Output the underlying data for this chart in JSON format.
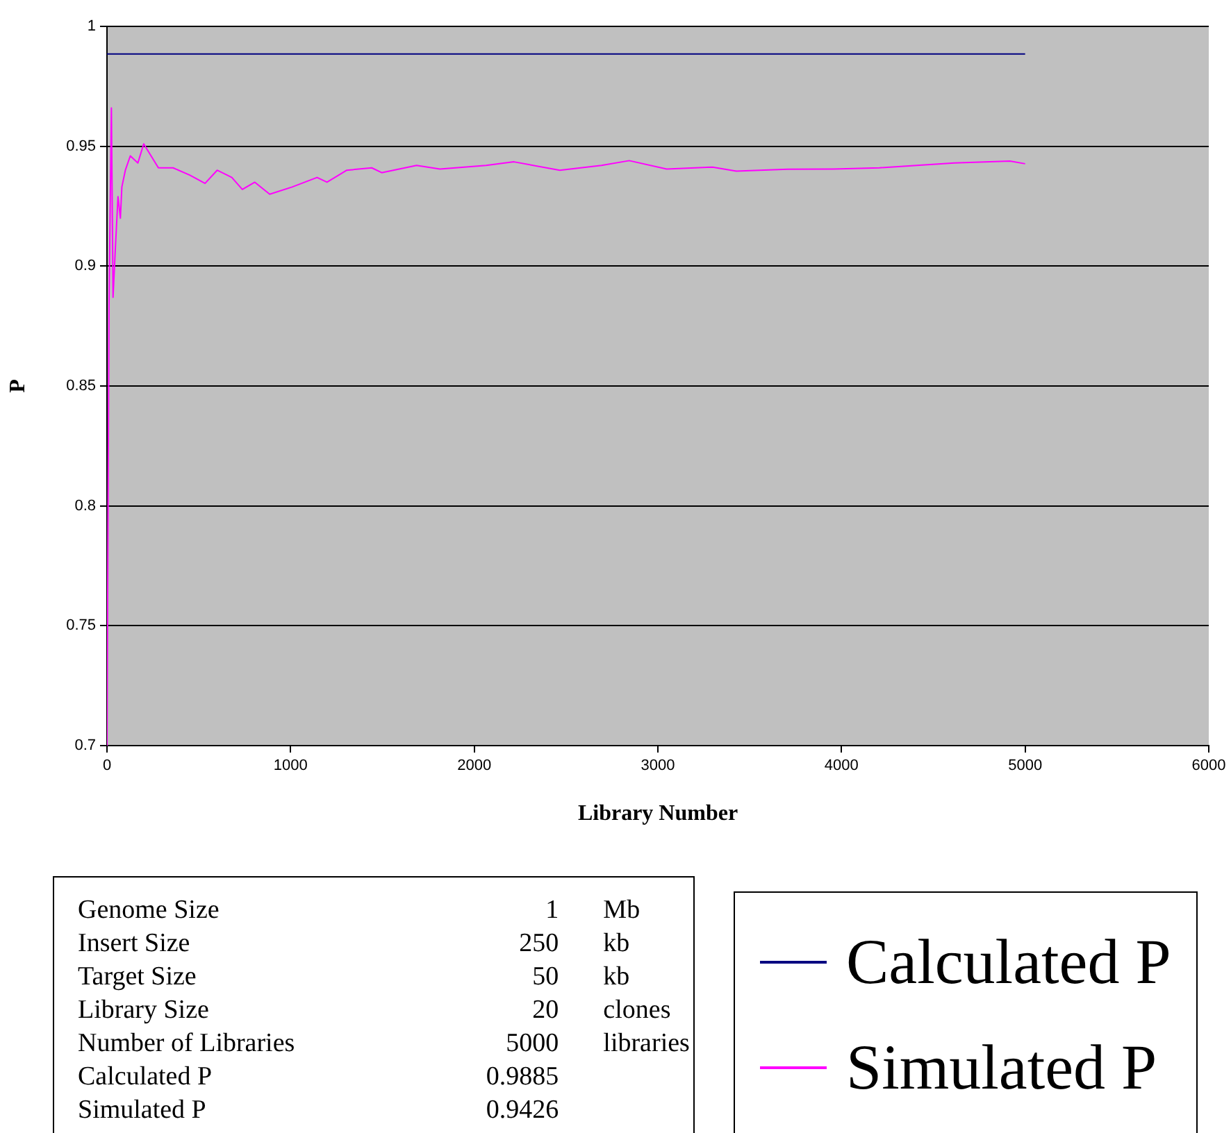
{
  "chart_data": {
    "type": "line",
    "xlabel": "Library Number",
    "ylabel": "P",
    "xlim": [
      0,
      6000
    ],
    "xticks": [
      0,
      1000,
      2000,
      3000,
      4000,
      5000,
      6000
    ],
    "ylim": [
      0.7,
      1
    ],
    "yticks": [
      0.7,
      0.75,
      0.8,
      0.85,
      0.9,
      0.95,
      1
    ],
    "grid": "y",
    "legend": "bottom right",
    "marker": "none",
    "line_style": "solid",
    "series": [
      {
        "name": "Calculated P",
        "color": "#000080",
        "x": [
          0,
          5000
        ],
        "values": [
          0.9885,
          0.9885
        ]
      },
      {
        "name": "Simulated P",
        "color": "#ff00ff",
        "x": [
          0,
          11,
          24,
          33,
          46,
          60,
          73,
          81,
          100,
          127,
          168,
          200,
          280,
          360,
          450,
          534,
          600,
          680,
          737,
          805,
          886,
          1008,
          1144,
          1198,
          1306,
          1442,
          1496,
          1686,
          1813,
          2065,
          2216,
          2466,
          2693,
          2844,
          3048,
          3298,
          3427,
          3707,
          3956,
          4206,
          4410,
          4614,
          4917,
          5000
        ],
        "values": [
          0.7,
          0.883,
          0.966,
          0.887,
          0.908,
          0.929,
          0.92,
          0.933,
          0.94,
          0.946,
          0.943,
          0.951,
          0.941,
          0.941,
          0.938,
          0.9345,
          0.94,
          0.937,
          0.932,
          0.935,
          0.93,
          0.933,
          0.937,
          0.935,
          0.94,
          0.941,
          0.939,
          0.942,
          0.9405,
          0.942,
          0.9435,
          0.94,
          0.942,
          0.944,
          0.9405,
          0.9413,
          0.9396,
          0.9404,
          0.9405,
          0.941,
          0.942,
          0.943,
          0.9438,
          0.9427
        ]
      }
    ],
    "annotations": [
      "Genome Size\t1\tMb",
      "Insert Size\t250\tkb",
      "Target Size\t50\tkb",
      "Library Size\t20\tclones",
      "Number of Libraries\t5000\tlibraries",
      "Calculated P\t0.9885\t",
      "Simulated P\t0.9426\t"
    ]
  }
}
